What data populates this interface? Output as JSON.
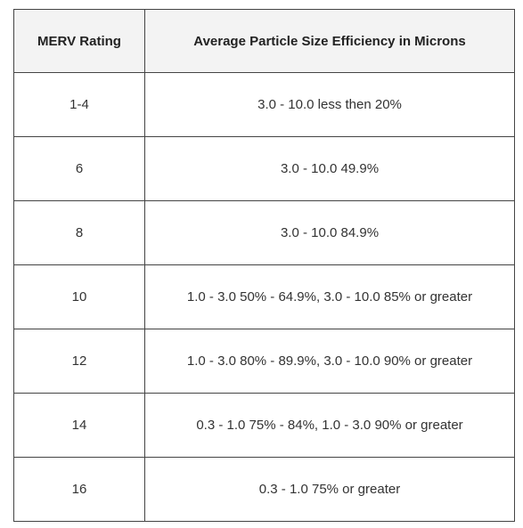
{
  "table": {
    "headers": {
      "rating": "MERV Rating",
      "efficiency": "Average Particle Size Efficiency in Microns"
    },
    "rows": [
      {
        "rating": "1-4",
        "efficiency": "3.0 - 10.0 less then 20%"
      },
      {
        "rating": "6",
        "efficiency": "3.0 - 10.0 49.9%"
      },
      {
        "rating": "8",
        "efficiency": "3.0 - 10.0 84.9%"
      },
      {
        "rating": "10",
        "efficiency": "1.0 - 3.0 50% - 64.9%, 3.0 - 10.0 85% or greater"
      },
      {
        "rating": "12",
        "efficiency": "1.0 - 3.0 80% - 89.9%, 3.0 - 10.0 90% or greater"
      },
      {
        "rating": "14",
        "efficiency": "0.3 - 1.0 75% - 84%, 1.0 - 3.0 90% or greater"
      },
      {
        "rating": "16",
        "efficiency": "0.3 - 1.0 75% or greater"
      }
    ]
  }
}
